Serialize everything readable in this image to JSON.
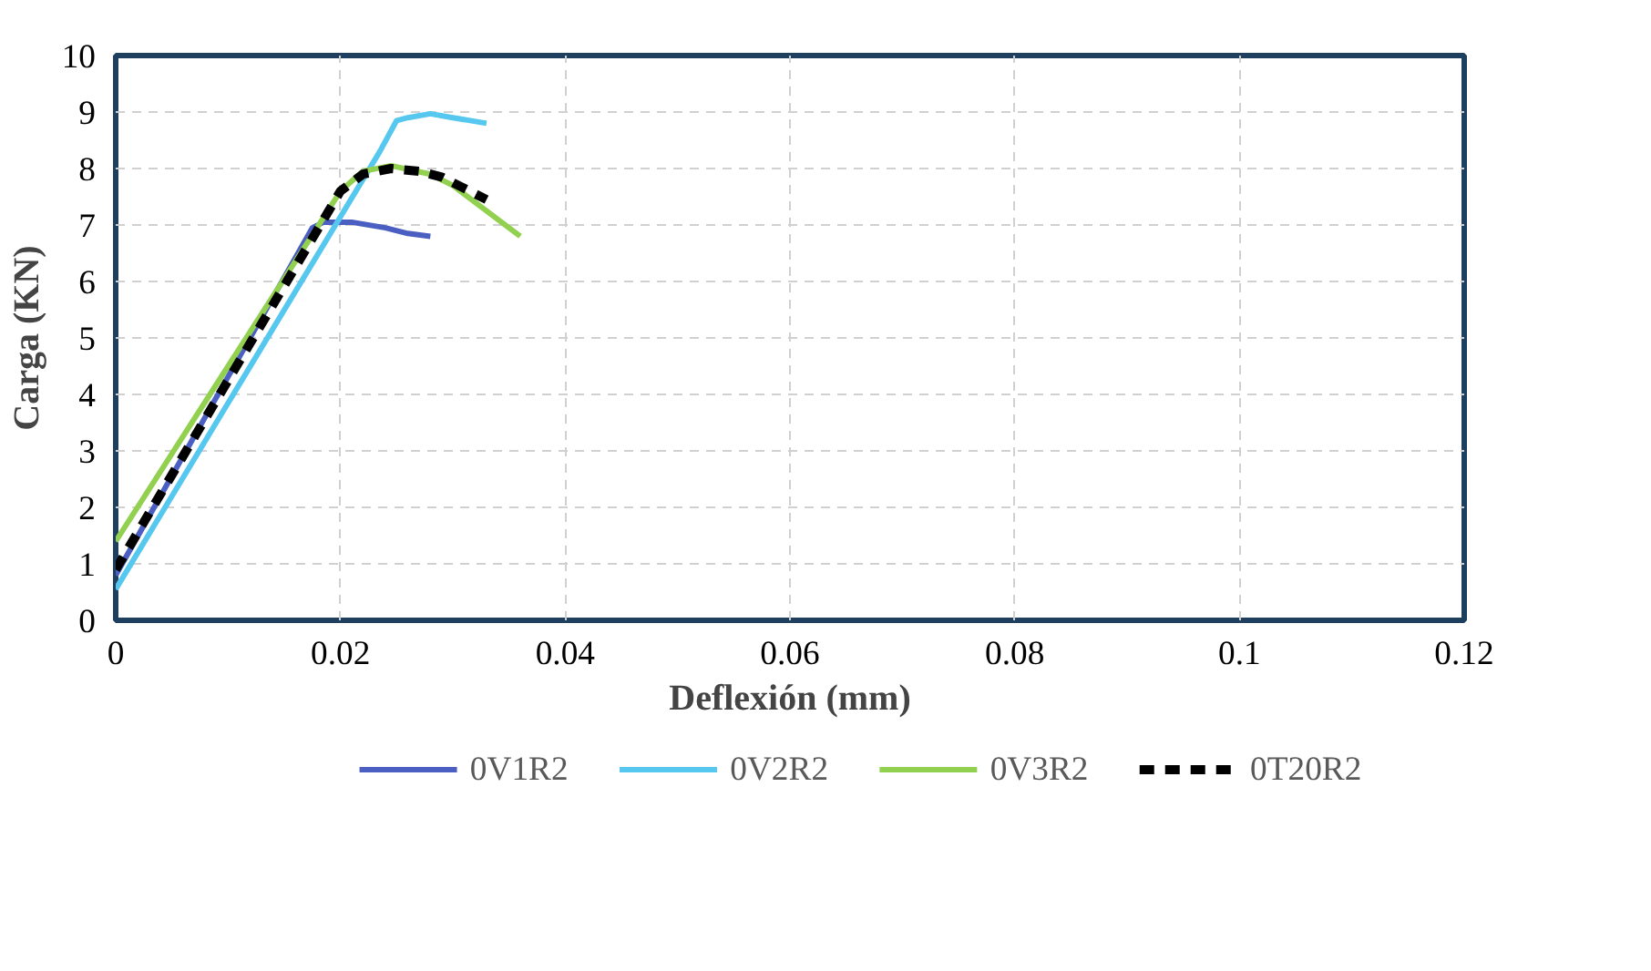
{
  "chart_data": {
    "type": "line",
    "xlabel": "Deflexión (mm)",
    "ylabel": "Carga (KN)",
    "xlim": [
      0,
      0.12
    ],
    "xticks": [
      0,
      0.02,
      0.04,
      0.06,
      0.08,
      0.1,
      0.12
    ],
    "ylim": [
      0,
      10
    ],
    "yticks": [
      0,
      1,
      2,
      3,
      4,
      5,
      6,
      7,
      8,
      9,
      10
    ],
    "grid": true,
    "legend": "bottom",
    "series": [
      {
        "name": "0V1R2",
        "color": "#4a5fc1",
        "line_style": "solid",
        "x": [
          0,
          0.0175,
          0.0185,
          0.021,
          0.024,
          0.026,
          0.028
        ],
        "values": [
          0.8,
          6.95,
          7.05,
          7.05,
          6.95,
          6.85,
          6.8
        ]
      },
      {
        "name": "0V2R2",
        "color": "#56c8f0",
        "line_style": "solid",
        "x": [
          0,
          0.0235,
          0.025,
          0.026,
          0.028,
          0.03,
          0.033
        ],
        "values": [
          0.55,
          8.3,
          8.85,
          8.9,
          8.97,
          8.9,
          8.8
        ]
      },
      {
        "name": "0V3R2",
        "color": "#92d050",
        "line_style": "solid",
        "x": [
          0,
          0.02,
          0.022,
          0.0245,
          0.028,
          0.03,
          0.036
        ],
        "values": [
          1.4,
          7.6,
          7.95,
          8.05,
          7.9,
          7.7,
          6.8
        ]
      },
      {
        "name": "0T20R2",
        "color": "#000000",
        "line_style": "dashed",
        "x": [
          0,
          0.02,
          0.022,
          0.0245,
          0.027,
          0.029,
          0.033
        ],
        "values": [
          0.9,
          7.6,
          7.9,
          8.0,
          7.95,
          7.85,
          7.45
        ]
      }
    ]
  }
}
